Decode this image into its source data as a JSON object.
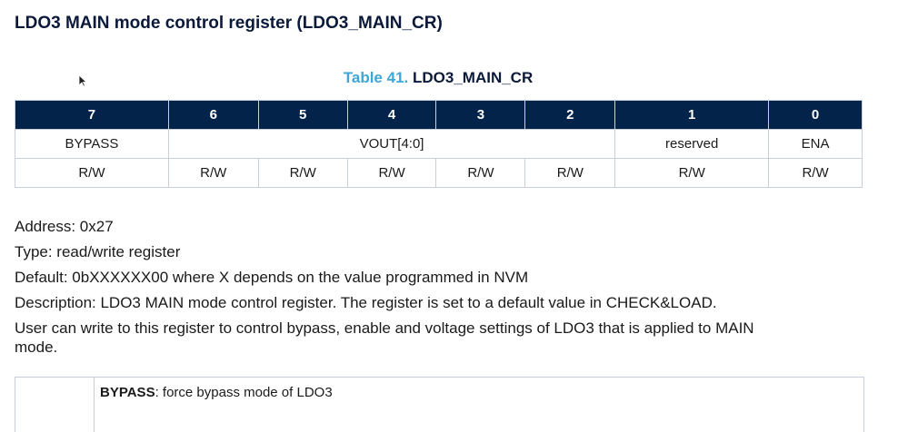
{
  "heading": "LDO3 MAIN mode control register (LDO3_MAIN_CR)",
  "caption": {
    "number": "Table 41.",
    "title": "LDO3_MAIN_CR"
  },
  "table": {
    "bits": [
      "7",
      "6",
      "5",
      "4",
      "3",
      "2",
      "1",
      "0"
    ],
    "fields": [
      "BYPASS",
      "VOUT[4:0]",
      "reserved",
      "ENA"
    ],
    "access": [
      "R/W",
      "R/W",
      "R/W",
      "R/W",
      "R/W",
      "R/W",
      "R/W",
      "R/W"
    ]
  },
  "lines": [
    "Address: 0x27",
    "Type: read/write register",
    "Default: 0bXXXXXX00 where X depends on the value programmed in NVM",
    "Description: LDO3 MAIN mode control register. The register is set to a default value in CHECK&LOAD.",
    "User can write to this register to control bypass, enable and voltage settings of LDO3 that is applied to MAIN",
    "mode."
  ],
  "field_desc": {
    "name": "BYPASS",
    "text": ": force bypass mode of LDO3"
  },
  "colors": {
    "header_bg": "#03234b",
    "caption_number": "#3ea6d8"
  }
}
